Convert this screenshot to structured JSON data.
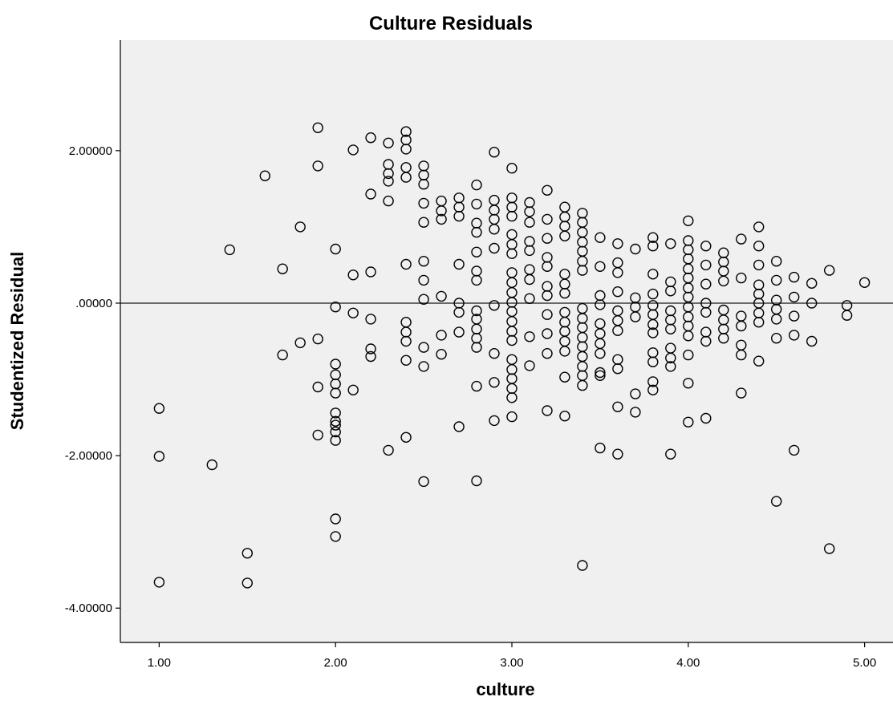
{
  "chart_data": {
    "type": "scatter",
    "title": "Culture Residuals",
    "xlabel": "culture",
    "ylabel": "Studentized Residual",
    "xlim": [
      0.78,
      5.17
    ],
    "ylim": [
      -4.45,
      3.45
    ],
    "x_ticks": [
      {
        "value": 1,
        "label": "1.00"
      },
      {
        "value": 2,
        "label": "2.00"
      },
      {
        "value": 3,
        "label": "3.00"
      },
      {
        "value": 4,
        "label": "4.00"
      },
      {
        "value": 5,
        "label": "5.00"
      }
    ],
    "y_ticks": [
      {
        "value": 2,
        "label": "2.00000"
      },
      {
        "value": 0,
        "label": ".00000"
      },
      {
        "value": -2,
        "label": "-2.00000"
      },
      {
        "value": -4,
        "label": "-4.00000"
      }
    ],
    "reference_line_y": 0,
    "grid": false,
    "colors": {
      "plot_bg": "#f0f0f0",
      "marker": "#000000",
      "axis": "#000000",
      "reference_line": "#555555"
    },
    "points": [
      [
        1.0,
        -1.38
      ],
      [
        1.0,
        -2.01
      ],
      [
        1.0,
        -3.66
      ],
      [
        1.3,
        -2.12
      ],
      [
        1.4,
        0.7
      ],
      [
        1.5,
        -3.28
      ],
      [
        1.5,
        -3.67
      ],
      [
        1.6,
        1.67
      ],
      [
        1.7,
        0.45
      ],
      [
        1.7,
        -0.68
      ],
      [
        1.8,
        1.0
      ],
      [
        1.8,
        -0.52
      ],
      [
        1.9,
        2.3
      ],
      [
        1.9,
        1.8
      ],
      [
        1.9,
        -0.47
      ],
      [
        1.9,
        -1.1
      ],
      [
        1.9,
        -1.73
      ],
      [
        2.0,
        0.71
      ],
      [
        2.0,
        -0.05
      ],
      [
        2.0,
        -0.8
      ],
      [
        2.0,
        -0.94
      ],
      [
        2.0,
        -1.06
      ],
      [
        2.0,
        -1.18
      ],
      [
        2.0,
        -1.44
      ],
      [
        2.0,
        -1.55
      ],
      [
        2.0,
        -1.6
      ],
      [
        2.0,
        -1.69
      ],
      [
        2.0,
        -1.8
      ],
      [
        2.0,
        -2.83
      ],
      [
        2.0,
        -3.06
      ],
      [
        2.1,
        2.01
      ],
      [
        2.1,
        0.37
      ],
      [
        2.1,
        -0.13
      ],
      [
        2.1,
        -1.14
      ],
      [
        2.2,
        2.17
      ],
      [
        2.2,
        1.43
      ],
      [
        2.2,
        0.41
      ],
      [
        2.2,
        -0.21
      ],
      [
        2.2,
        -0.6
      ],
      [
        2.2,
        -0.7
      ],
      [
        2.3,
        2.1
      ],
      [
        2.3,
        1.82
      ],
      [
        2.3,
        1.7
      ],
      [
        2.3,
        1.6
      ],
      [
        2.3,
        1.34
      ],
      [
        2.3,
        -1.93
      ],
      [
        2.4,
        2.25
      ],
      [
        2.4,
        2.14
      ],
      [
        2.4,
        2.02
      ],
      [
        2.4,
        1.78
      ],
      [
        2.4,
        1.65
      ],
      [
        2.4,
        0.51
      ],
      [
        2.4,
        -0.25
      ],
      [
        2.4,
        -0.38
      ],
      [
        2.4,
        -0.5
      ],
      [
        2.4,
        -0.75
      ],
      [
        2.4,
        -1.76
      ],
      [
        2.5,
        1.8
      ],
      [
        2.5,
        1.68
      ],
      [
        2.5,
        1.56
      ],
      [
        2.5,
        1.31
      ],
      [
        2.5,
        1.06
      ],
      [
        2.5,
        0.55
      ],
      [
        2.5,
        0.3
      ],
      [
        2.5,
        0.05
      ],
      [
        2.5,
        -0.58
      ],
      [
        2.5,
        -0.83
      ],
      [
        2.5,
        -2.34
      ],
      [
        2.6,
        1.34
      ],
      [
        2.6,
        1.21
      ],
      [
        2.6,
        1.1
      ],
      [
        2.6,
        0.09
      ],
      [
        2.6,
        -0.42
      ],
      [
        2.6,
        -0.67
      ],
      [
        2.7,
        1.38
      ],
      [
        2.7,
        1.26
      ],
      [
        2.7,
        1.14
      ],
      [
        2.7,
        0.51
      ],
      [
        2.7,
        0.0
      ],
      [
        2.7,
        -0.12
      ],
      [
        2.7,
        -0.38
      ],
      [
        2.7,
        -1.62
      ],
      [
        2.8,
        1.55
      ],
      [
        2.8,
        1.3
      ],
      [
        2.8,
        1.05
      ],
      [
        2.8,
        0.93
      ],
      [
        2.8,
        0.67
      ],
      [
        2.8,
        0.42
      ],
      [
        2.8,
        0.3
      ],
      [
        2.8,
        -0.1
      ],
      [
        2.8,
        -0.21
      ],
      [
        2.8,
        -0.34
      ],
      [
        2.8,
        -0.46
      ],
      [
        2.8,
        -0.58
      ],
      [
        2.8,
        -1.09
      ],
      [
        2.8,
        -2.33
      ],
      [
        2.9,
        1.98
      ],
      [
        2.9,
        1.35
      ],
      [
        2.9,
        1.22
      ],
      [
        2.9,
        1.1
      ],
      [
        2.9,
        0.97
      ],
      [
        2.9,
        0.72
      ],
      [
        2.9,
        -0.03
      ],
      [
        2.9,
        -0.66
      ],
      [
        2.9,
        -1.04
      ],
      [
        2.9,
        -1.54
      ],
      [
        3.0,
        1.77
      ],
      [
        3.0,
        1.38
      ],
      [
        3.0,
        1.26
      ],
      [
        3.0,
        1.14
      ],
      [
        3.0,
        0.9
      ],
      [
        3.0,
        0.77
      ],
      [
        3.0,
        0.65
      ],
      [
        3.0,
        0.4
      ],
      [
        3.0,
        0.27
      ],
      [
        3.0,
        0.14
      ],
      [
        3.0,
        0.01
      ],
      [
        3.0,
        -0.11
      ],
      [
        3.0,
        -0.24
      ],
      [
        3.0,
        -0.37
      ],
      [
        3.0,
        -0.49
      ],
      [
        3.0,
        -0.74
      ],
      [
        3.0,
        -0.87
      ],
      [
        3.0,
        -0.99
      ],
      [
        3.0,
        -1.12
      ],
      [
        3.0,
        -1.24
      ],
      [
        3.0,
        -1.49
      ],
      [
        3.1,
        1.32
      ],
      [
        3.1,
        1.2
      ],
      [
        3.1,
        1.06
      ],
      [
        3.1,
        0.81
      ],
      [
        3.1,
        0.69
      ],
      [
        3.1,
        0.44
      ],
      [
        3.1,
        0.31
      ],
      [
        3.1,
        0.06
      ],
      [
        3.1,
        -0.44
      ],
      [
        3.1,
        -0.82
      ],
      [
        3.2,
        1.48
      ],
      [
        3.2,
        1.1
      ],
      [
        3.2,
        0.85
      ],
      [
        3.2,
        0.6
      ],
      [
        3.2,
        0.48
      ],
      [
        3.2,
        0.22
      ],
      [
        3.2,
        0.1
      ],
      [
        3.2,
        -0.15
      ],
      [
        3.2,
        -0.4
      ],
      [
        3.2,
        -0.66
      ],
      [
        3.2,
        -1.41
      ],
      [
        3.3,
        1.26
      ],
      [
        3.3,
        1.13
      ],
      [
        3.3,
        1.01
      ],
      [
        3.3,
        0.88
      ],
      [
        3.3,
        0.38
      ],
      [
        3.3,
        0.25
      ],
      [
        3.3,
        0.13
      ],
      [
        3.3,
        -0.12
      ],
      [
        3.3,
        -0.25
      ],
      [
        3.3,
        -0.37
      ],
      [
        3.3,
        -0.5
      ],
      [
        3.3,
        -0.63
      ],
      [
        3.3,
        -0.97
      ],
      [
        3.3,
        -1.48
      ],
      [
        3.4,
        1.18
      ],
      [
        3.4,
        1.06
      ],
      [
        3.4,
        0.93
      ],
      [
        3.4,
        0.8
      ],
      [
        3.4,
        0.68
      ],
      [
        3.4,
        0.55
      ],
      [
        3.4,
        0.43
      ],
      [
        3.4,
        -0.07
      ],
      [
        3.4,
        -0.2
      ],
      [
        3.4,
        -0.32
      ],
      [
        3.4,
        -0.45
      ],
      [
        3.4,
        -0.57
      ],
      [
        3.4,
        -0.7
      ],
      [
        3.4,
        -0.83
      ],
      [
        3.4,
        -0.95
      ],
      [
        3.4,
        -1.08
      ],
      [
        3.4,
        -3.44
      ],
      [
        3.5,
        0.86
      ],
      [
        3.5,
        0.48
      ],
      [
        3.5,
        0.1
      ],
      [
        3.5,
        -0.02
      ],
      [
        3.5,
        -0.27
      ],
      [
        3.5,
        -0.4
      ],
      [
        3.5,
        -0.53
      ],
      [
        3.5,
        -0.66
      ],
      [
        3.5,
        -0.91
      ],
      [
        3.5,
        -0.95
      ],
      [
        3.5,
        -1.9
      ],
      [
        3.6,
        0.78
      ],
      [
        3.6,
        0.53
      ],
      [
        3.6,
        0.4
      ],
      [
        3.6,
        0.15
      ],
      [
        3.6,
        -0.1
      ],
      [
        3.6,
        -0.23
      ],
      [
        3.6,
        -0.36
      ],
      [
        3.6,
        -0.74
      ],
      [
        3.6,
        -0.86
      ],
      [
        3.6,
        -1.36
      ],
      [
        3.6,
        -1.98
      ],
      [
        3.7,
        0.71
      ],
      [
        3.7,
        0.07
      ],
      [
        3.7,
        -0.05
      ],
      [
        3.7,
        -0.18
      ],
      [
        3.7,
        -1.19
      ],
      [
        3.7,
        -1.43
      ],
      [
        3.8,
        0.86
      ],
      [
        3.8,
        0.75
      ],
      [
        3.8,
        0.38
      ],
      [
        3.8,
        0.12
      ],
      [
        3.8,
        -0.03
      ],
      [
        3.8,
        -0.15
      ],
      [
        3.8,
        -0.28
      ],
      [
        3.8,
        -0.39
      ],
      [
        3.8,
        -0.65
      ],
      [
        3.8,
        -0.77
      ],
      [
        3.8,
        -1.03
      ],
      [
        3.8,
        -1.14
      ],
      [
        3.9,
        0.78
      ],
      [
        3.9,
        0.28
      ],
      [
        3.9,
        0.16
      ],
      [
        3.9,
        -0.1
      ],
      [
        3.9,
        -0.22
      ],
      [
        3.9,
        -0.34
      ],
      [
        3.9,
        -0.59
      ],
      [
        3.9,
        -0.72
      ],
      [
        3.9,
        -0.83
      ],
      [
        3.9,
        -1.98
      ],
      [
        4.0,
        1.08
      ],
      [
        4.0,
        0.82
      ],
      [
        4.0,
        0.7
      ],
      [
        4.0,
        0.58
      ],
      [
        4.0,
        0.45
      ],
      [
        4.0,
        0.33
      ],
      [
        4.0,
        0.2
      ],
      [
        4.0,
        0.08
      ],
      [
        4.0,
        -0.05
      ],
      [
        4.0,
        -0.18
      ],
      [
        4.0,
        -0.3
      ],
      [
        4.0,
        -0.43
      ],
      [
        4.0,
        -0.68
      ],
      [
        4.0,
        -1.05
      ],
      [
        4.0,
        -1.56
      ],
      [
        4.1,
        0.75
      ],
      [
        4.1,
        0.5
      ],
      [
        4.1,
        0.25
      ],
      [
        4.1,
        0.0
      ],
      [
        4.1,
        -0.12
      ],
      [
        4.1,
        -0.38
      ],
      [
        4.1,
        -0.5
      ],
      [
        4.1,
        -1.51
      ],
      [
        4.2,
        0.66
      ],
      [
        4.2,
        0.54
      ],
      [
        4.2,
        0.42
      ],
      [
        4.2,
        0.29
      ],
      [
        4.2,
        -0.09
      ],
      [
        4.2,
        -0.22
      ],
      [
        4.2,
        -0.34
      ],
      [
        4.2,
        -0.46
      ],
      [
        4.3,
        0.84
      ],
      [
        4.3,
        0.33
      ],
      [
        4.3,
        -0.17
      ],
      [
        4.3,
        -0.3
      ],
      [
        4.3,
        -0.55
      ],
      [
        4.3,
        -0.68
      ],
      [
        4.3,
        -1.18
      ],
      [
        4.4,
        1.0
      ],
      [
        4.4,
        0.75
      ],
      [
        4.4,
        0.5
      ],
      [
        4.4,
        0.24
      ],
      [
        4.4,
        0.12
      ],
      [
        4.4,
        0.0
      ],
      [
        4.4,
        -0.13
      ],
      [
        4.4,
        -0.25
      ],
      [
        4.4,
        -0.76
      ],
      [
        4.5,
        0.55
      ],
      [
        4.5,
        0.3
      ],
      [
        4.5,
        0.04
      ],
      [
        4.5,
        -0.08
      ],
      [
        4.5,
        -0.21
      ],
      [
        4.5,
        -0.46
      ],
      [
        4.5,
        -2.6
      ],
      [
        4.6,
        0.34
      ],
      [
        4.6,
        0.08
      ],
      [
        4.6,
        -0.17
      ],
      [
        4.6,
        -0.42
      ],
      [
        4.6,
        -1.93
      ],
      [
        4.7,
        0.26
      ],
      [
        4.7,
        0.0
      ],
      [
        4.7,
        -0.5
      ],
      [
        4.8,
        0.43
      ],
      [
        4.8,
        -3.22
      ],
      [
        4.9,
        -0.03
      ],
      [
        4.9,
        -0.16
      ],
      [
        5.0,
        0.27
      ]
    ]
  }
}
